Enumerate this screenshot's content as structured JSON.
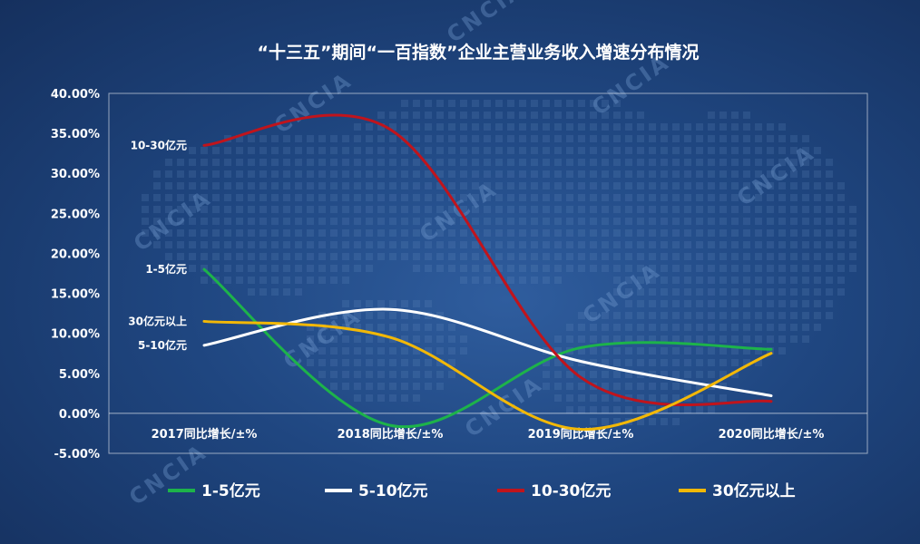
{
  "chart_data": {
    "type": "line",
    "title": "“十三五”期间“一百指数”企业主营业务收入增速分布情况",
    "categories": [
      "2017同比增长/±%",
      "2018同比增长/±%",
      "2019同比增长/±%",
      "2020同比增长/±%"
    ],
    "y_ticks": [
      "40.00%",
      "35.00%",
      "30.00%",
      "25.00%",
      "20.00%",
      "15.00%",
      "10.00%",
      "5.00%",
      "0.00%",
      "-5.00%"
    ],
    "ylim": [
      -5,
      40
    ],
    "series": [
      {
        "name": "1-5亿元",
        "label": "1-5亿元",
        "color": "#1db34a",
        "values": [
          18.0,
          -1.5,
          8.2,
          8.0
        ]
      },
      {
        "name": "5-10亿元",
        "label": "5-10亿元",
        "color": "#ffffff",
        "values": [
          8.5,
          13.0,
          6.5,
          2.2
        ]
      },
      {
        "name": "10-30亿元",
        "label": "10-30亿元",
        "color": "#c0141c",
        "values": [
          33.5,
          35.5,
          4.5,
          1.5
        ]
      },
      {
        "name": "30亿元以上",
        "label": "30亿元以上",
        "color": "#f2b807",
        "values": [
          11.5,
          9.5,
          -2.0,
          7.5
        ]
      }
    ],
    "legend_position": "bottom",
    "grid": false
  },
  "watermark": "CNCIA"
}
